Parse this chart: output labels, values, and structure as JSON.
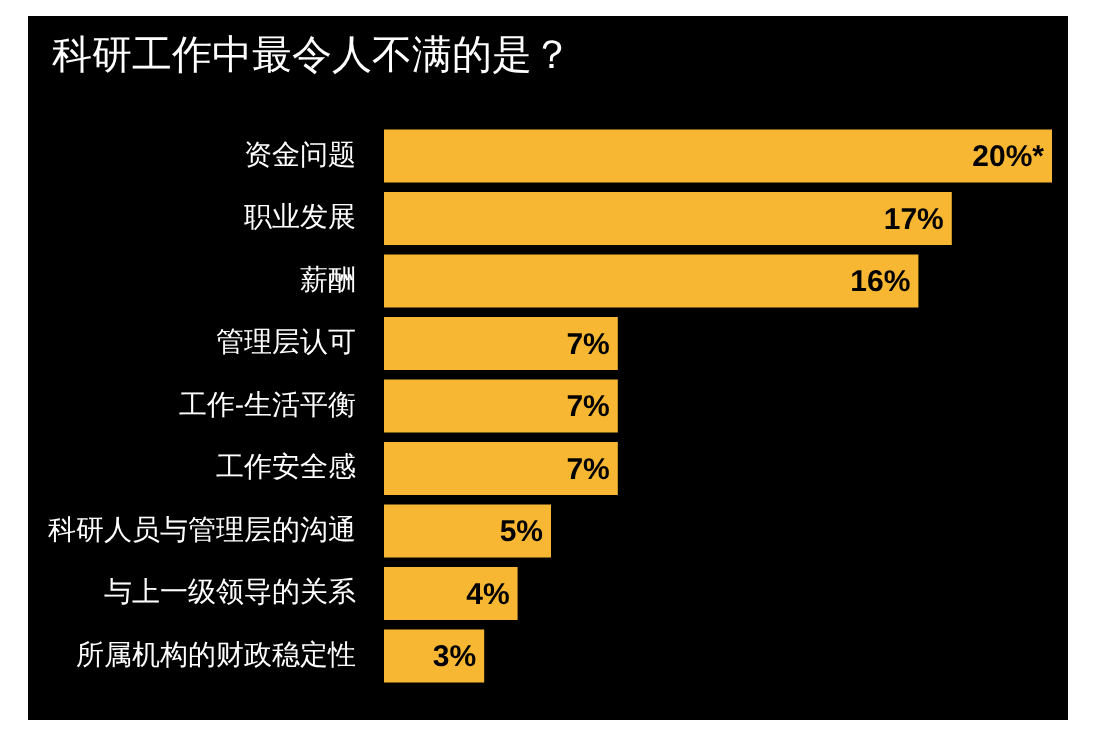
{
  "chart_data": {
    "type": "bar",
    "orientation": "horizontal",
    "title": "科研工作中最令人不满的是？",
    "categories": [
      "资金问题",
      "职业发展",
      "薪酬",
      "管理层认可",
      "工作-生活平衡",
      "工作安全感",
      "科研人员与管理层的沟通",
      "与上一级领导的关系",
      "所属机构的财政稳定性"
    ],
    "values": [
      20,
      17,
      16,
      7,
      7,
      7,
      5,
      4,
      3
    ],
    "value_labels": [
      "20%*",
      "17%",
      "16%",
      "7%",
      "7%",
      "7%",
      "5%",
      "4%",
      "3%"
    ],
    "color": "#f7b733",
    "tick_labels": "y"
  }
}
